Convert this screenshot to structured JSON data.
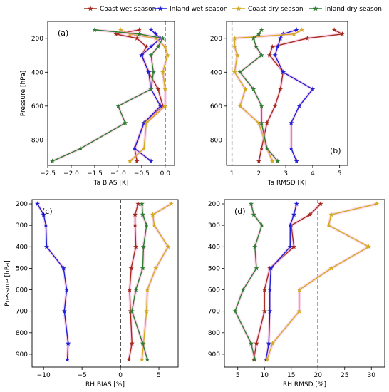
{
  "legend": [
    {
      "name": "Coast wet season",
      "color": "#a52a1e"
    },
    {
      "name": "Inland wet season",
      "color": "#1f1fd6"
    },
    {
      "name": "Coast dry season",
      "color": "#d4aa20"
    },
    {
      "name": "Inland dry season",
      "color": "#2e7d32"
    }
  ],
  "chart_data": [
    {
      "type": "line",
      "panel": "(a)",
      "xlabel": "Ta BIAS [K]",
      "ylabel": "Pressure [hPa]",
      "xlim": [
        -2.5,
        0.2
      ],
      "ylim": [
        950,
        100
      ],
      "xticks": [
        -2.5,
        -2.0,
        -1.5,
        -1.0,
        -0.5,
        0.0
      ],
      "xticklabels": [
        "−2.5",
        "−2.0",
        "−1.5",
        "−1.0",
        "−0.5",
        "0.0"
      ],
      "yticks": [
        200,
        400,
        600,
        800
      ],
      "yticklabels": [
        "200",
        "400",
        "600",
        "800"
      ],
      "ref_line": {
        "axis": "x",
        "value": 0
      },
      "series": [
        {
          "name": "Coast wet season",
          "x": [
            -0.55,
            -1.05,
            -0.6,
            -0.4,
            -0.5,
            -0.35,
            -0.15,
            -0.05,
            -0.45,
            -0.65,
            -0.6
          ],
          "y": [
            150,
            175,
            200,
            250,
            300,
            400,
            500,
            600,
            700,
            850,
            925
          ]
        },
        {
          "name": "Inland wet season",
          "x": [
            -0.3,
            -0.2,
            -0.1,
            -0.3,
            -0.5,
            -0.35,
            -0.3,
            -0.1,
            -0.45,
            -0.65,
            -0.3
          ],
          "y": [
            150,
            175,
            200,
            250,
            300,
            400,
            500,
            600,
            700,
            850,
            925
          ]
        },
        {
          "name": "Coast dry season",
          "x": [
            -0.95,
            -0.75,
            -0.2,
            0.0,
            0.05,
            -0.05,
            0.0,
            0.0,
            -0.4,
            -0.45,
            -0.75
          ],
          "y": [
            150,
            175,
            200,
            250,
            300,
            400,
            500,
            600,
            700,
            850,
            925
          ]
        },
        {
          "name": "Inland dry season",
          "x": [
            -1.5,
            -0.55,
            -0.05,
            -0.15,
            -0.3,
            -0.25,
            -0.3,
            -1.0,
            -0.85,
            -1.8,
            -2.4
          ],
          "y": [
            150,
            175,
            200,
            250,
            300,
            400,
            500,
            600,
            700,
            850,
            925
          ]
        }
      ]
    },
    {
      "type": "line",
      "panel": "(b)",
      "xlabel": "Ta RMSD [K]",
      "ylabel": "",
      "xlim": [
        0.8,
        5.3
      ],
      "ylim": [
        950,
        100
      ],
      "xticks": [
        1,
        2,
        3,
        4,
        5
      ],
      "xticklabels": [
        "1",
        "2",
        "3",
        "4",
        "5"
      ],
      "yticks": [
        200,
        400,
        600,
        800
      ],
      "yticklabels": [
        "200",
        "400",
        "600",
        "800"
      ],
      "ref_line": {
        "axis": "x",
        "value": 1
      },
      "series": [
        {
          "name": "Coast wet season",
          "x": [
            4.8,
            5.1,
            3.8,
            2.5,
            2.4,
            2.9,
            2.8,
            2.6,
            2.3,
            2.1,
            2.0
          ],
          "y": [
            150,
            175,
            200,
            250,
            300,
            400,
            500,
            600,
            700,
            850,
            925
          ]
        },
        {
          "name": "Inland wet season",
          "x": [
            3.4,
            2.9,
            2.8,
            2.7,
            2.6,
            2.9,
            4.0,
            3.5,
            3.2,
            3.2,
            3.4
          ],
          "y": [
            150,
            175,
            200,
            250,
            300,
            400,
            500,
            600,
            700,
            850,
            925
          ]
        },
        {
          "name": "Coast dry season",
          "x": [
            3.6,
            3.3,
            1.1,
            1.1,
            1.2,
            1.1,
            1.5,
            1.3,
            2.0,
            2.3,
            2.5
          ],
          "y": [
            150,
            175,
            200,
            250,
            300,
            400,
            500,
            600,
            700,
            850,
            925
          ]
        },
        {
          "name": "Inland dry season",
          "x": [
            2.1,
            2.0,
            1.8,
            1.9,
            2.1,
            1.3,
            1.8,
            2.1,
            2.1,
            2.3,
            2.7
          ],
          "y": [
            150,
            175,
            200,
            250,
            300,
            400,
            500,
            600,
            700,
            850,
            925
          ]
        }
      ]
    },
    {
      "type": "line",
      "panel": "(c)",
      "xlabel": "RH BIAS [%]",
      "ylabel": "Pressure [hPa]",
      "xlim": [
        -11.5,
        7.5
      ],
      "ylim": [
        960,
        180
      ],
      "xticks": [
        -10,
        -5,
        0,
        5
      ],
      "xticklabels": [
        "−10",
        "−5",
        "0",
        "5"
      ],
      "yticks": [
        200,
        300,
        400,
        500,
        600,
        700,
        800,
        900
      ],
      "yticklabels": [
        "200",
        "300",
        "400",
        "500",
        "600",
        "700",
        "800",
        "900"
      ],
      "ref_line": {
        "axis": "x",
        "value": 0
      },
      "series": [
        {
          "name": "Coast wet season",
          "x": [
            2.3,
            1.9,
            1.9,
            2.0,
            1.4,
            1.2,
            1.3,
            1.5,
            1.1
          ],
          "y": [
            200,
            250,
            300,
            400,
            500,
            600,
            700,
            850,
            925
          ]
        },
        {
          "name": "Inland wet season",
          "x": [
            -10.8,
            -10.0,
            -9.7,
            -9.6,
            -7.4,
            -7.0,
            -7.3,
            -6.8,
            -6.9
          ],
          "y": [
            200,
            250,
            300,
            400,
            500,
            600,
            700,
            850,
            925
          ]
        },
        {
          "name": "Coast dry season",
          "x": [
            6.6,
            4.2,
            4.4,
            6.2,
            4.6,
            3.5,
            3.4,
            3.0,
            2.8
          ],
          "y": [
            200,
            250,
            300,
            400,
            500,
            600,
            700,
            850,
            925
          ]
        },
        {
          "name": "Inland dry season",
          "x": [
            2.8,
            2.9,
            3.4,
            3.0,
            2.9,
            2.0,
            1.5,
            2.9,
            3.5
          ],
          "y": [
            200,
            250,
            300,
            400,
            500,
            600,
            700,
            850,
            925
          ]
        }
      ]
    },
    {
      "type": "line",
      "panel": "(d)",
      "xlabel": "RH RMSD [%]",
      "ylabel": "",
      "xlim": [
        2.5,
        32.5
      ],
      "ylim": [
        960,
        180
      ],
      "xticks": [
        5,
        10,
        15,
        20,
        25,
        30
      ],
      "xticklabels": [
        "5",
        "10",
        "15",
        "20",
        "25",
        "30"
      ],
      "yticks": [
        200,
        300,
        400,
        500,
        600,
        700,
        800,
        900
      ],
      "yticklabels": [
        "200",
        "300",
        "400",
        "500",
        "600",
        "700",
        "800",
        "900"
      ],
      "ref_line": {
        "axis": "x",
        "value": 20
      },
      "series": [
        {
          "name": "Coast wet season",
          "x": [
            20.5,
            18.5,
            15.0,
            15.5,
            11.0,
            10.0,
            10.0,
            8.5,
            8.0
          ],
          "y": [
            200,
            250,
            300,
            400,
            500,
            600,
            700,
            850,
            925
          ]
        },
        {
          "name": "Inland wet season",
          "x": [
            16.0,
            15.5,
            14.8,
            14.8,
            11.2,
            11.0,
            11.0,
            10.8,
            10.3
          ],
          "y": [
            200,
            250,
            300,
            400,
            500,
            600,
            700,
            850,
            925
          ]
        },
        {
          "name": "Coast dry season",
          "x": [
            31.0,
            22.5,
            22.0,
            29.5,
            22.5,
            16.5,
            16.5,
            11.5,
            10.5
          ],
          "y": [
            200,
            250,
            300,
            400,
            500,
            600,
            700,
            850,
            925
          ]
        },
        {
          "name": "Inland dry season",
          "x": [
            7.5,
            8.0,
            9.5,
            8.2,
            8.5,
            6.0,
            4.5,
            7.5,
            8.2
          ],
          "y": [
            200,
            250,
            300,
            400,
            500,
            600,
            700,
            850,
            925
          ]
        }
      ]
    }
  ]
}
